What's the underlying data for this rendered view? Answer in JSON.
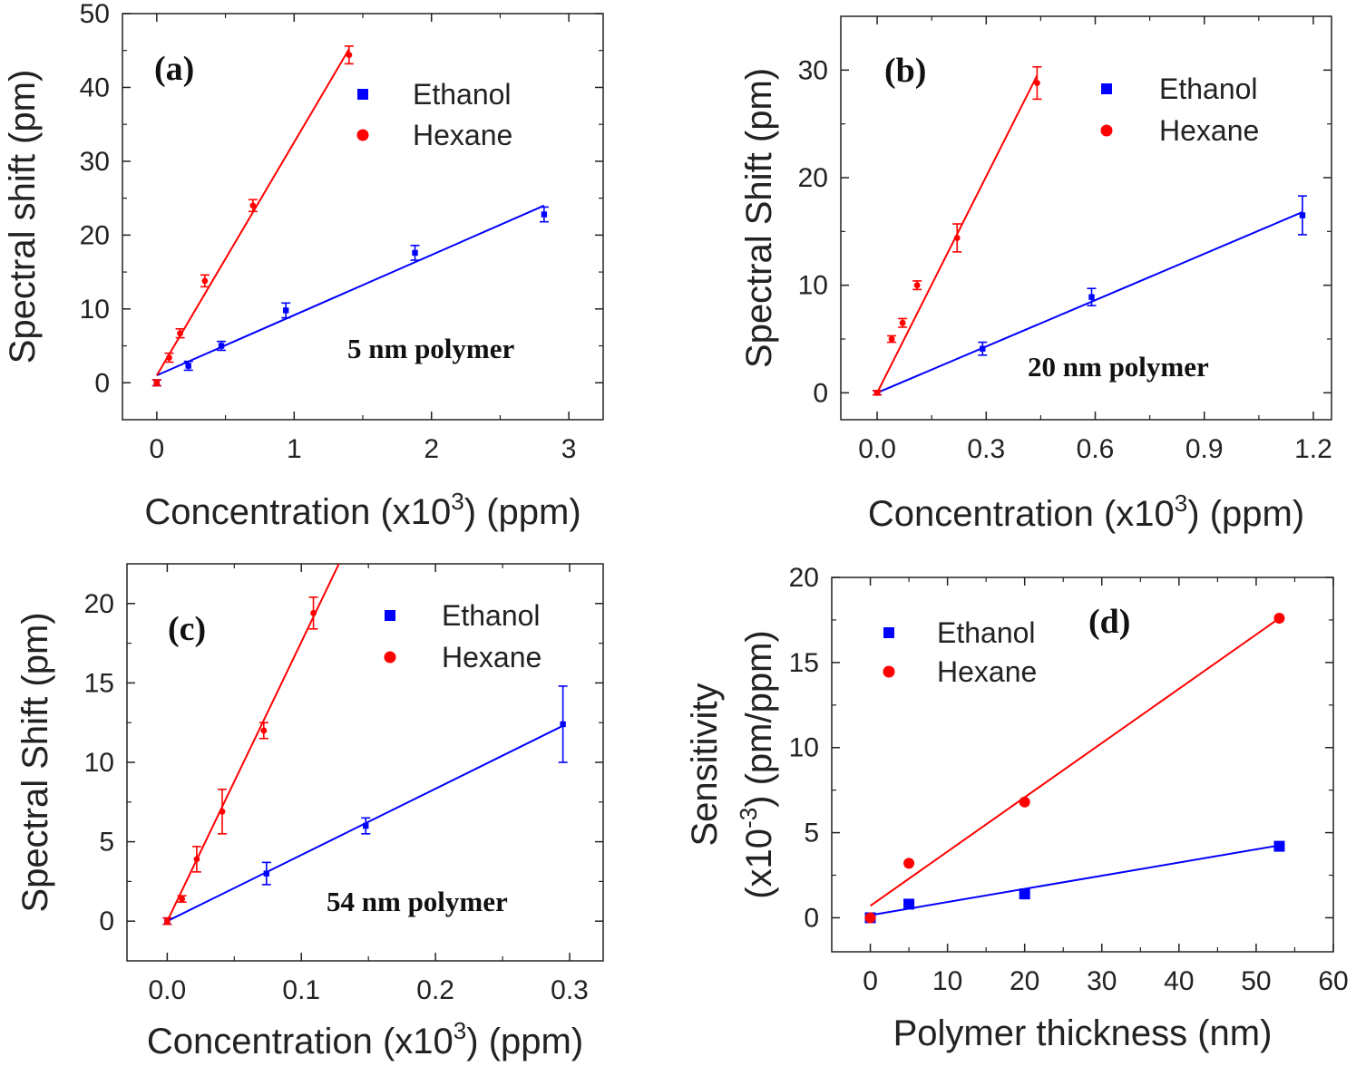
{
  "chart_data": [
    {
      "type": "scatter",
      "panel_label": "(a)",
      "annotation": "5 nm polymer",
      "xlabel": "Concentration (x10",
      "xlabel_sup": "3",
      "xlabel_tail": ") (ppm)",
      "ylabel": "Spectral shift (pm)",
      "xlim": [
        -0.25,
        3.25
      ],
      "ylim": [
        -5,
        50
      ],
      "xticks": [
        0,
        1,
        2,
        3
      ],
      "xtick_labels": [
        "0",
        "1",
        "2",
        "3"
      ],
      "yticks": [
        0,
        10,
        20,
        30,
        40,
        50
      ],
      "ytick_labels": [
        "0",
        "10",
        "20",
        "30",
        "40",
        "50"
      ],
      "legend": [
        "Ethanol",
        "Hexane"
      ],
      "series": [
        {
          "name": "Ethanol",
          "color": "#0000ff",
          "marker": "square",
          "x": [
            0,
            0.23,
            0.47,
            0.94,
            1.88,
            2.82
          ],
          "y": [
            0,
            2.3,
            5.0,
            9.8,
            17.6,
            22.8
          ],
          "err": [
            0.4,
            0.6,
            0.6,
            1.0,
            1.0,
            1.0
          ],
          "fit": [
            [
              0,
              1.0
            ],
            [
              2.82,
              24.0
            ]
          ]
        },
        {
          "name": "Hexane",
          "color": "#ff0000",
          "marker": "circle",
          "x": [
            0,
            0.09,
            0.17,
            0.35,
            0.7,
            1.4
          ],
          "y": [
            0,
            3.4,
            6.7,
            13.8,
            24.0,
            44.4
          ],
          "err": [
            0.4,
            0.6,
            0.6,
            0.8,
            0.8,
            1.2
          ],
          "fit": [
            [
              0,
              1.0
            ],
            [
              1.4,
              45.2
            ]
          ]
        }
      ]
    },
    {
      "type": "scatter",
      "panel_label": "(b)",
      "annotation": "20 nm polymer",
      "xlabel": "Concentration (x10",
      "xlabel_sup": "3",
      "xlabel_tail": ") (ppm)",
      "ylabel": "Spectral Shift (pm)",
      "xlim": [
        -0.1,
        1.25
      ],
      "ylim": [
        -2.5,
        35
      ],
      "xticks": [
        0,
        0.3,
        0.6,
        0.9,
        1.2
      ],
      "xtick_labels": [
        "0.0",
        "0.3",
        "0.6",
        "0.9",
        "1.2"
      ],
      "yticks": [
        0,
        10,
        20,
        30
      ],
      "ytick_labels": [
        "0",
        "10",
        "20",
        "30"
      ],
      "legend": [
        "Ethanol",
        "Hexane"
      ],
      "series": [
        {
          "name": "Ethanol",
          "color": "#0000ff",
          "marker": "square",
          "x": [
            0,
            0.29,
            0.59,
            1.17
          ],
          "y": [
            0,
            4.1,
            8.9,
            16.5
          ],
          "err": [
            0.2,
            0.6,
            0.8,
            1.8
          ],
          "fit": [
            [
              0,
              0
            ],
            [
              1.17,
              16.8
            ]
          ]
        },
        {
          "name": "Hexane",
          "color": "#ff0000",
          "marker": "circle",
          "x": [
            0,
            0.04,
            0.07,
            0.11,
            0.22,
            0.44
          ],
          "y": [
            0,
            5.0,
            6.5,
            10.0,
            14.4,
            28.8
          ],
          "err": [
            0.2,
            0.3,
            0.4,
            0.4,
            1.3,
            1.5
          ],
          "fit": [
            [
              0,
              0
            ],
            [
              0.44,
              29.5
            ]
          ]
        }
      ]
    },
    {
      "type": "scatter",
      "panel_label": "(c)",
      "annotation": "54 nm polymer",
      "xlabel": "Concentration (x10",
      "xlabel_sup": "3",
      "xlabel_tail": ") (ppm)",
      "ylabel": "Spectral Shift (pm)",
      "xlim": [
        -0.03,
        0.325
      ],
      "ylim": [
        -2.5,
        22.5
      ],
      "xticks": [
        0,
        0.1,
        0.2,
        0.3
      ],
      "xtick_labels": [
        "0.0",
        "0.1",
        "0.2",
        "0.3"
      ],
      "yticks": [
        0,
        5,
        10,
        15,
        20
      ],
      "ytick_labels": [
        "0",
        "5",
        "10",
        "15",
        "20"
      ],
      "legend": [
        "Ethanol",
        "Hexane"
      ],
      "series": [
        {
          "name": "Ethanol",
          "color": "#0000ff",
          "marker": "square",
          "x": [
            0,
            0.074,
            0.148,
            0.295
          ],
          "y": [
            0,
            3.0,
            6.0,
            12.4
          ],
          "err": [
            0.2,
            0.7,
            0.5,
            2.4
          ],
          "fit": [
            [
              0,
              0
            ],
            [
              0.295,
              12.3
            ]
          ]
        },
        {
          "name": "Hexane",
          "color": "#ff0000",
          "marker": "circle",
          "x": [
            0,
            0.011,
            0.022,
            0.041,
            0.072,
            0.109
          ],
          "y": [
            0,
            1.4,
            3.9,
            6.9,
            12.0,
            19.4
          ],
          "err": [
            0.2,
            0.2,
            0.8,
            1.4,
            0.5,
            1.0
          ],
          "fit": [
            [
              0,
              0
            ],
            [
              0.128,
              22.5
            ]
          ]
        }
      ]
    },
    {
      "type": "scatter",
      "panel_label": "(d)",
      "annotation": "",
      "xlabel": "Polymer thickness (nm)",
      "xlabel_sup": "",
      "xlabel_tail": "",
      "ylabel": "Sensitivity",
      "ylabel2": "(x10",
      "ylabel2_sup": "-3",
      "ylabel2_tail": ") (pm/ppm)",
      "xlim": [
        -5,
        60
      ],
      "ylim": [
        -2,
        20
      ],
      "xticks": [
        0,
        10,
        20,
        30,
        40,
        50,
        60
      ],
      "xtick_labels": [
        "0",
        "10",
        "20",
        "30",
        "40",
        "50",
        "60"
      ],
      "yticks": [
        0,
        5,
        10,
        15,
        20
      ],
      "ytick_labels": [
        "0",
        "5",
        "10",
        "15",
        "20"
      ],
      "legend": [
        "Ethanol",
        "Hexane"
      ],
      "series": [
        {
          "name": "Ethanol",
          "color": "#0000ff",
          "marker": "square",
          "x": [
            0,
            5,
            20,
            53
          ],
          "y": [
            0,
            0.8,
            1.4,
            4.2
          ],
          "fit": [
            [
              0,
              0.15
            ],
            [
              53,
              4.25
            ]
          ]
        },
        {
          "name": "Hexane",
          "color": "#ff0000",
          "marker": "circle",
          "x": [
            0,
            5,
            20,
            53
          ],
          "y": [
            0,
            3.2,
            6.8,
            17.6
          ],
          "fit": [
            [
              0,
              0.7
            ],
            [
              53,
              17.6
            ]
          ]
        }
      ]
    }
  ]
}
